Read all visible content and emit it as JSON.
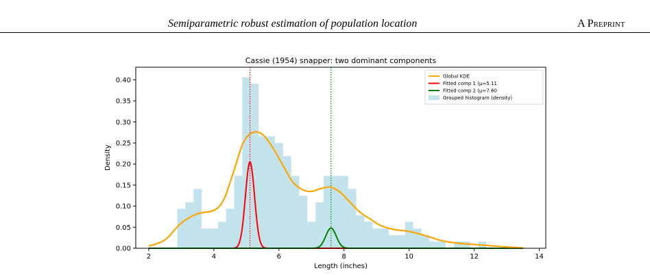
{
  "header": {
    "running_title": "Semiparametric robust estimation of population location",
    "running_right": "A Preprint"
  },
  "chart_data": {
    "type": "area",
    "title": "Cassie (1954) snapper: two dominant components",
    "xlabel": "Length (inches)",
    "ylabel": "Density",
    "xlim": [
      1.6,
      14.2
    ],
    "ylim": [
      0,
      0.43
    ],
    "xticks": [
      2,
      4,
      6,
      8,
      10,
      12,
      14
    ],
    "yticks": [
      0.0,
      0.05,
      0.1,
      0.15,
      0.2,
      0.25,
      0.3,
      0.35,
      0.4
    ],
    "legend_position": "top-right",
    "grid": false,
    "colors": {
      "kde": "#ffa500",
      "comp1": "#ff0000",
      "comp2": "#008000",
      "histogram": "#add8e6"
    },
    "vlines": [
      {
        "x": 5.11,
        "color": "#ff0000"
      },
      {
        "x": 7.6,
        "color": "#008000"
      }
    ],
    "series": [
      {
        "name": "Global KDE",
        "kind": "line",
        "x": [
          2.0,
          2.5,
          3.0,
          3.5,
          4.0,
          4.3,
          4.6,
          4.9,
          5.2,
          5.5,
          5.8,
          6.1,
          6.4,
          6.7,
          7.0,
          7.3,
          7.6,
          7.9,
          8.2,
          8.5,
          8.8,
          9.1,
          9.5,
          10.0,
          10.5,
          11.0,
          11.5,
          12.0,
          12.5,
          13.0,
          13.5
        ],
        "y": [
          0.005,
          0.02,
          0.06,
          0.082,
          0.09,
          0.115,
          0.18,
          0.25,
          0.275,
          0.27,
          0.24,
          0.2,
          0.16,
          0.14,
          0.135,
          0.142,
          0.145,
          0.132,
          0.108,
          0.085,
          0.07,
          0.055,
          0.045,
          0.04,
          0.03,
          0.018,
          0.012,
          0.009,
          0.006,
          0.003,
          0.001
        ]
      },
      {
        "name": "Fitted comp 1 (μ≈5.11",
        "kind": "gaussian",
        "mu": 5.11,
        "sigma": 0.14,
        "peak": 0.205
      },
      {
        "name": "Fitted comp 2 (μ≈7.60",
        "kind": "gaussian",
        "mu": 7.6,
        "sigma": 0.16,
        "peak": 0.048
      },
      {
        "name": "Grouped histogram (density)",
        "kind": "histogram",
        "bin_width": 0.25,
        "bin_starts": [
          2.875,
          3.125,
          3.375,
          3.625,
          3.875,
          4.125,
          4.375,
          4.625,
          4.875,
          5.125,
          5.375,
          5.625,
          5.875,
          6.125,
          6.375,
          6.625,
          6.875,
          7.125,
          7.375,
          7.625,
          7.875,
          8.125,
          8.375,
          8.625,
          8.875,
          9.125,
          9.375,
          9.625,
          9.875,
          10.125,
          10.375,
          10.625,
          10.875,
          11.125,
          11.375,
          11.625,
          11.875,
          12.125,
          12.375
        ],
        "values": [
          0.094,
          0.109,
          0.141,
          0.047,
          0.047,
          0.063,
          0.094,
          0.172,
          0.406,
          0.391,
          0.266,
          0.266,
          0.25,
          0.219,
          0.172,
          0.125,
          0.063,
          0.109,
          0.172,
          0.172,
          0.172,
          0.141,
          0.078,
          0.063,
          0.047,
          0.047,
          0.031,
          0.031,
          0.063,
          0.047,
          0.031,
          0.016,
          0.016,
          0.0,
          0.016,
          0.016,
          0.0,
          0.016,
          0.0
        ]
      }
    ]
  }
}
